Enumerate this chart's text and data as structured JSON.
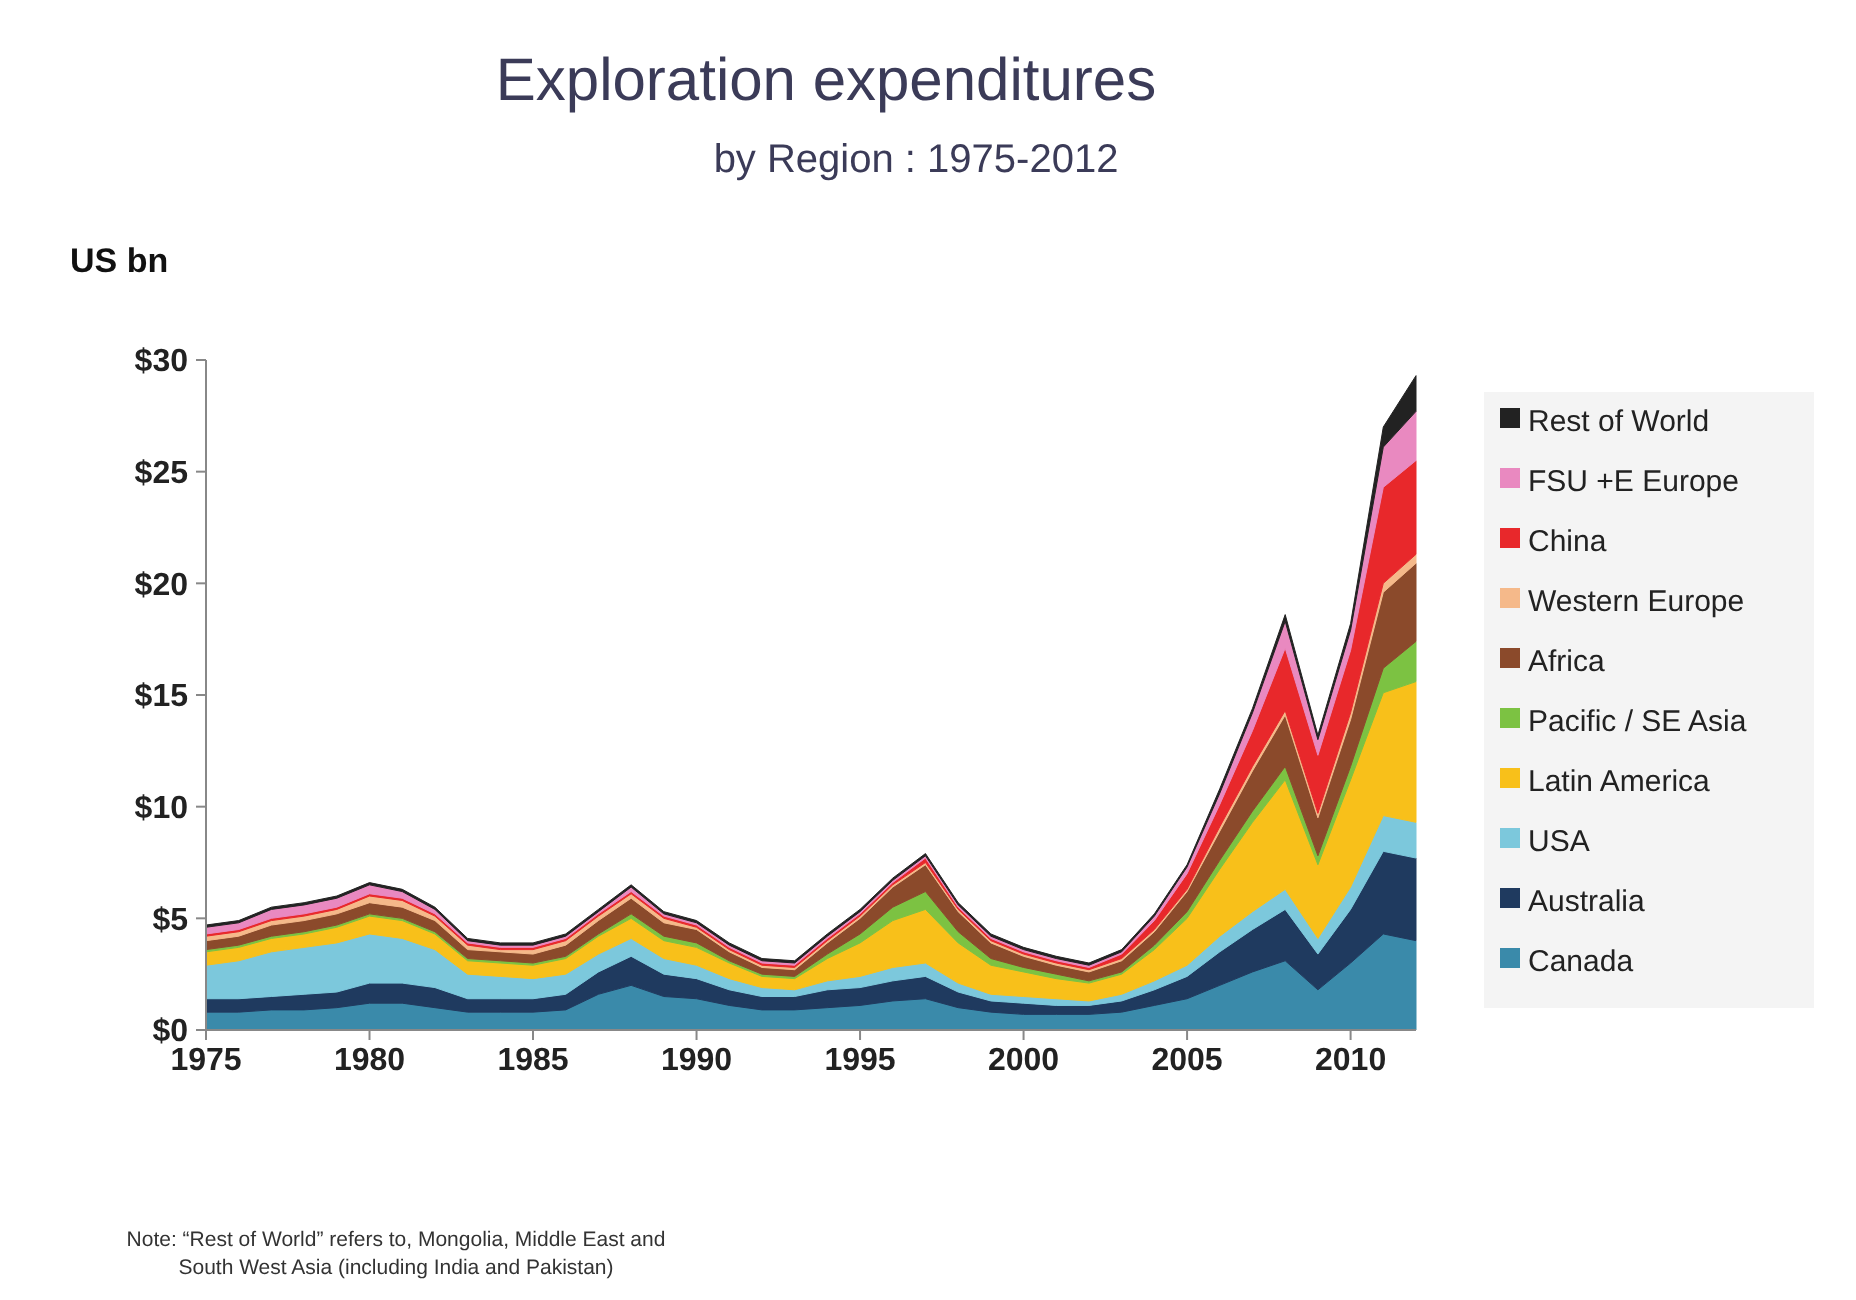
{
  "chart_data": {
    "type": "area",
    "title": "Exploration expenditures",
    "subtitle": "by Region : 1975-2012",
    "ylabel": "US bn",
    "stacked": true,
    "legend": "right",
    "grid": false,
    "x": [
      1975,
      1976,
      1977,
      1978,
      1979,
      1980,
      1981,
      1982,
      1983,
      1984,
      1985,
      1986,
      1987,
      1988,
      1989,
      1990,
      1991,
      1992,
      1993,
      1994,
      1995,
      1996,
      1997,
      1998,
      1999,
      2000,
      2001,
      2002,
      2003,
      2004,
      2005,
      2006,
      2007,
      2008,
      2009,
      2010,
      2011,
      2012
    ],
    "xlim": [
      1975,
      2012
    ],
    "xticks": [
      1975,
      1980,
      1985,
      1990,
      1995,
      2000,
      2005,
      2010
    ],
    "ylim": [
      0,
      30
    ],
    "yticks": [
      {
        "value": 0,
        "label": "$0"
      },
      {
        "value": 5,
        "label": "$5"
      },
      {
        "value": 10,
        "label": "$10"
      },
      {
        "value": 15,
        "label": "$15"
      },
      {
        "value": 20,
        "label": "$20"
      },
      {
        "value": 25,
        "label": "$25"
      },
      {
        "value": 30,
        "label": "$30"
      }
    ],
    "series": [
      {
        "name": "Canada",
        "color": "#3a8aaa",
        "values": [
          0.8,
          0.8,
          0.9,
          0.9,
          1.0,
          1.2,
          1.2,
          1.0,
          0.8,
          0.8,
          0.8,
          0.9,
          1.6,
          2.0,
          1.5,
          1.4,
          1.1,
          0.9,
          0.9,
          1.0,
          1.1,
          1.3,
          1.4,
          1.0,
          0.8,
          0.7,
          0.7,
          0.7,
          0.8,
          1.1,
          1.4,
          2.0,
          2.6,
          3.1,
          1.8,
          3.0,
          4.3,
          4.0
        ]
      },
      {
        "name": "Australia",
        "color": "#1f3a5f",
        "values": [
          0.6,
          0.6,
          0.6,
          0.7,
          0.7,
          0.9,
          0.9,
          0.9,
          0.6,
          0.6,
          0.6,
          0.7,
          1.0,
          1.3,
          1.0,
          0.9,
          0.7,
          0.6,
          0.6,
          0.8,
          0.8,
          0.9,
          1.0,
          0.7,
          0.5,
          0.5,
          0.4,
          0.4,
          0.5,
          0.7,
          1.0,
          1.5,
          1.9,
          2.3,
          1.6,
          2.4,
          3.7,
          3.7
        ]
      },
      {
        "name": "USA",
        "color": "#7cc8dc",
        "values": [
          1.5,
          1.7,
          2.0,
          2.1,
          2.2,
          2.2,
          2.0,
          1.7,
          1.1,
          1.0,
          0.9,
          0.9,
          0.8,
          0.8,
          0.7,
          0.6,
          0.5,
          0.4,
          0.3,
          0.4,
          0.5,
          0.6,
          0.6,
          0.4,
          0.3,
          0.3,
          0.3,
          0.2,
          0.3,
          0.4,
          0.5,
          0.7,
          0.8,
          0.9,
          0.7,
          1.0,
          1.6,
          1.6
        ]
      },
      {
        "name": "Latin America",
        "color": "#f8c01a",
        "values": [
          0.6,
          0.6,
          0.6,
          0.6,
          0.7,
          0.8,
          0.8,
          0.7,
          0.6,
          0.6,
          0.6,
          0.7,
          0.8,
          0.9,
          0.8,
          0.8,
          0.7,
          0.5,
          0.5,
          1.0,
          1.5,
          2.1,
          2.4,
          1.8,
          1.3,
          1.1,
          0.9,
          0.8,
          0.9,
          1.4,
          2.1,
          3.0,
          4.0,
          4.9,
          3.3,
          4.8,
          5.5,
          6.3
        ]
      },
      {
        "name": "Pacific / SE Asia",
        "color": "#7cc242",
        "values": [
          0.1,
          0.1,
          0.1,
          0.1,
          0.1,
          0.1,
          0.1,
          0.1,
          0.1,
          0.1,
          0.1,
          0.1,
          0.1,
          0.2,
          0.2,
          0.2,
          0.1,
          0.1,
          0.1,
          0.2,
          0.4,
          0.6,
          0.8,
          0.5,
          0.3,
          0.2,
          0.2,
          0.1,
          0.1,
          0.2,
          0.3,
          0.4,
          0.5,
          0.6,
          0.4,
          0.6,
          1.1,
          1.8
        ]
      },
      {
        "name": "Africa",
        "color": "#8b4a2b",
        "values": [
          0.4,
          0.4,
          0.5,
          0.5,
          0.5,
          0.5,
          0.5,
          0.5,
          0.4,
          0.4,
          0.4,
          0.5,
          0.6,
          0.7,
          0.6,
          0.6,
          0.4,
          0.3,
          0.3,
          0.5,
          0.7,
          0.9,
          1.2,
          0.9,
          0.7,
          0.5,
          0.4,
          0.4,
          0.5,
          0.6,
          0.9,
          1.3,
          1.8,
          2.3,
          1.7,
          2.1,
          3.4,
          3.5
        ]
      },
      {
        "name": "Western Europe",
        "color": "#f5b98a",
        "values": [
          0.2,
          0.2,
          0.2,
          0.2,
          0.2,
          0.3,
          0.3,
          0.2,
          0.2,
          0.1,
          0.2,
          0.2,
          0.2,
          0.2,
          0.2,
          0.1,
          0.1,
          0.1,
          0.1,
          0.1,
          0.1,
          0.1,
          0.1,
          0.1,
          0.1,
          0.1,
          0.1,
          0.1,
          0.1,
          0.1,
          0.1,
          0.2,
          0.2,
          0.2,
          0.2,
          0.3,
          0.4,
          0.4
        ]
      },
      {
        "name": "China",
        "color": "#e8282b",
        "values": [
          0.1,
          0.1,
          0.1,
          0.1,
          0.1,
          0.1,
          0.1,
          0.1,
          0.1,
          0.1,
          0.1,
          0.1,
          0.1,
          0.1,
          0.1,
          0.1,
          0.1,
          0.1,
          0.1,
          0.1,
          0.1,
          0.1,
          0.2,
          0.1,
          0.1,
          0.1,
          0.1,
          0.1,
          0.2,
          0.4,
          0.7,
          1.0,
          1.6,
          2.8,
          2.6,
          2.8,
          4.3,
          4.2
        ]
      },
      {
        "name": "FSU +E Europe",
        "color": "#e989c0",
        "values": [
          0.3,
          0.3,
          0.4,
          0.4,
          0.4,
          0.4,
          0.3,
          0.2,
          0.1,
          0.1,
          0.1,
          0.1,
          0.1,
          0.2,
          0.1,
          0.1,
          0.1,
          0.1,
          0.1,
          0.1,
          0.1,
          0.1,
          0.1,
          0.1,
          0.1,
          0.1,
          0.1,
          0.1,
          0.1,
          0.2,
          0.3,
          0.5,
          0.8,
          1.2,
          0.7,
          0.9,
          1.8,
          2.2
        ]
      },
      {
        "name": "Rest of World",
        "color": "#222222",
        "values": [
          0.1,
          0.1,
          0.1,
          0.1,
          0.1,
          0.1,
          0.1,
          0.1,
          0.1,
          0.1,
          0.1,
          0.1,
          0.1,
          0.1,
          0.1,
          0.1,
          0.1,
          0.1,
          0.1,
          0.1,
          0.1,
          0.1,
          0.1,
          0.1,
          0.1,
          0.1,
          0.1,
          0.1,
          0.1,
          0.1,
          0.1,
          0.2,
          0.2,
          0.3,
          0.2,
          0.3,
          0.9,
          1.6
        ]
      }
    ],
    "annotations": [
      "Note: “Rest of World” refers to, Mongolia, Middle East and South West Asia (including India and Pakistan)"
    ]
  }
}
